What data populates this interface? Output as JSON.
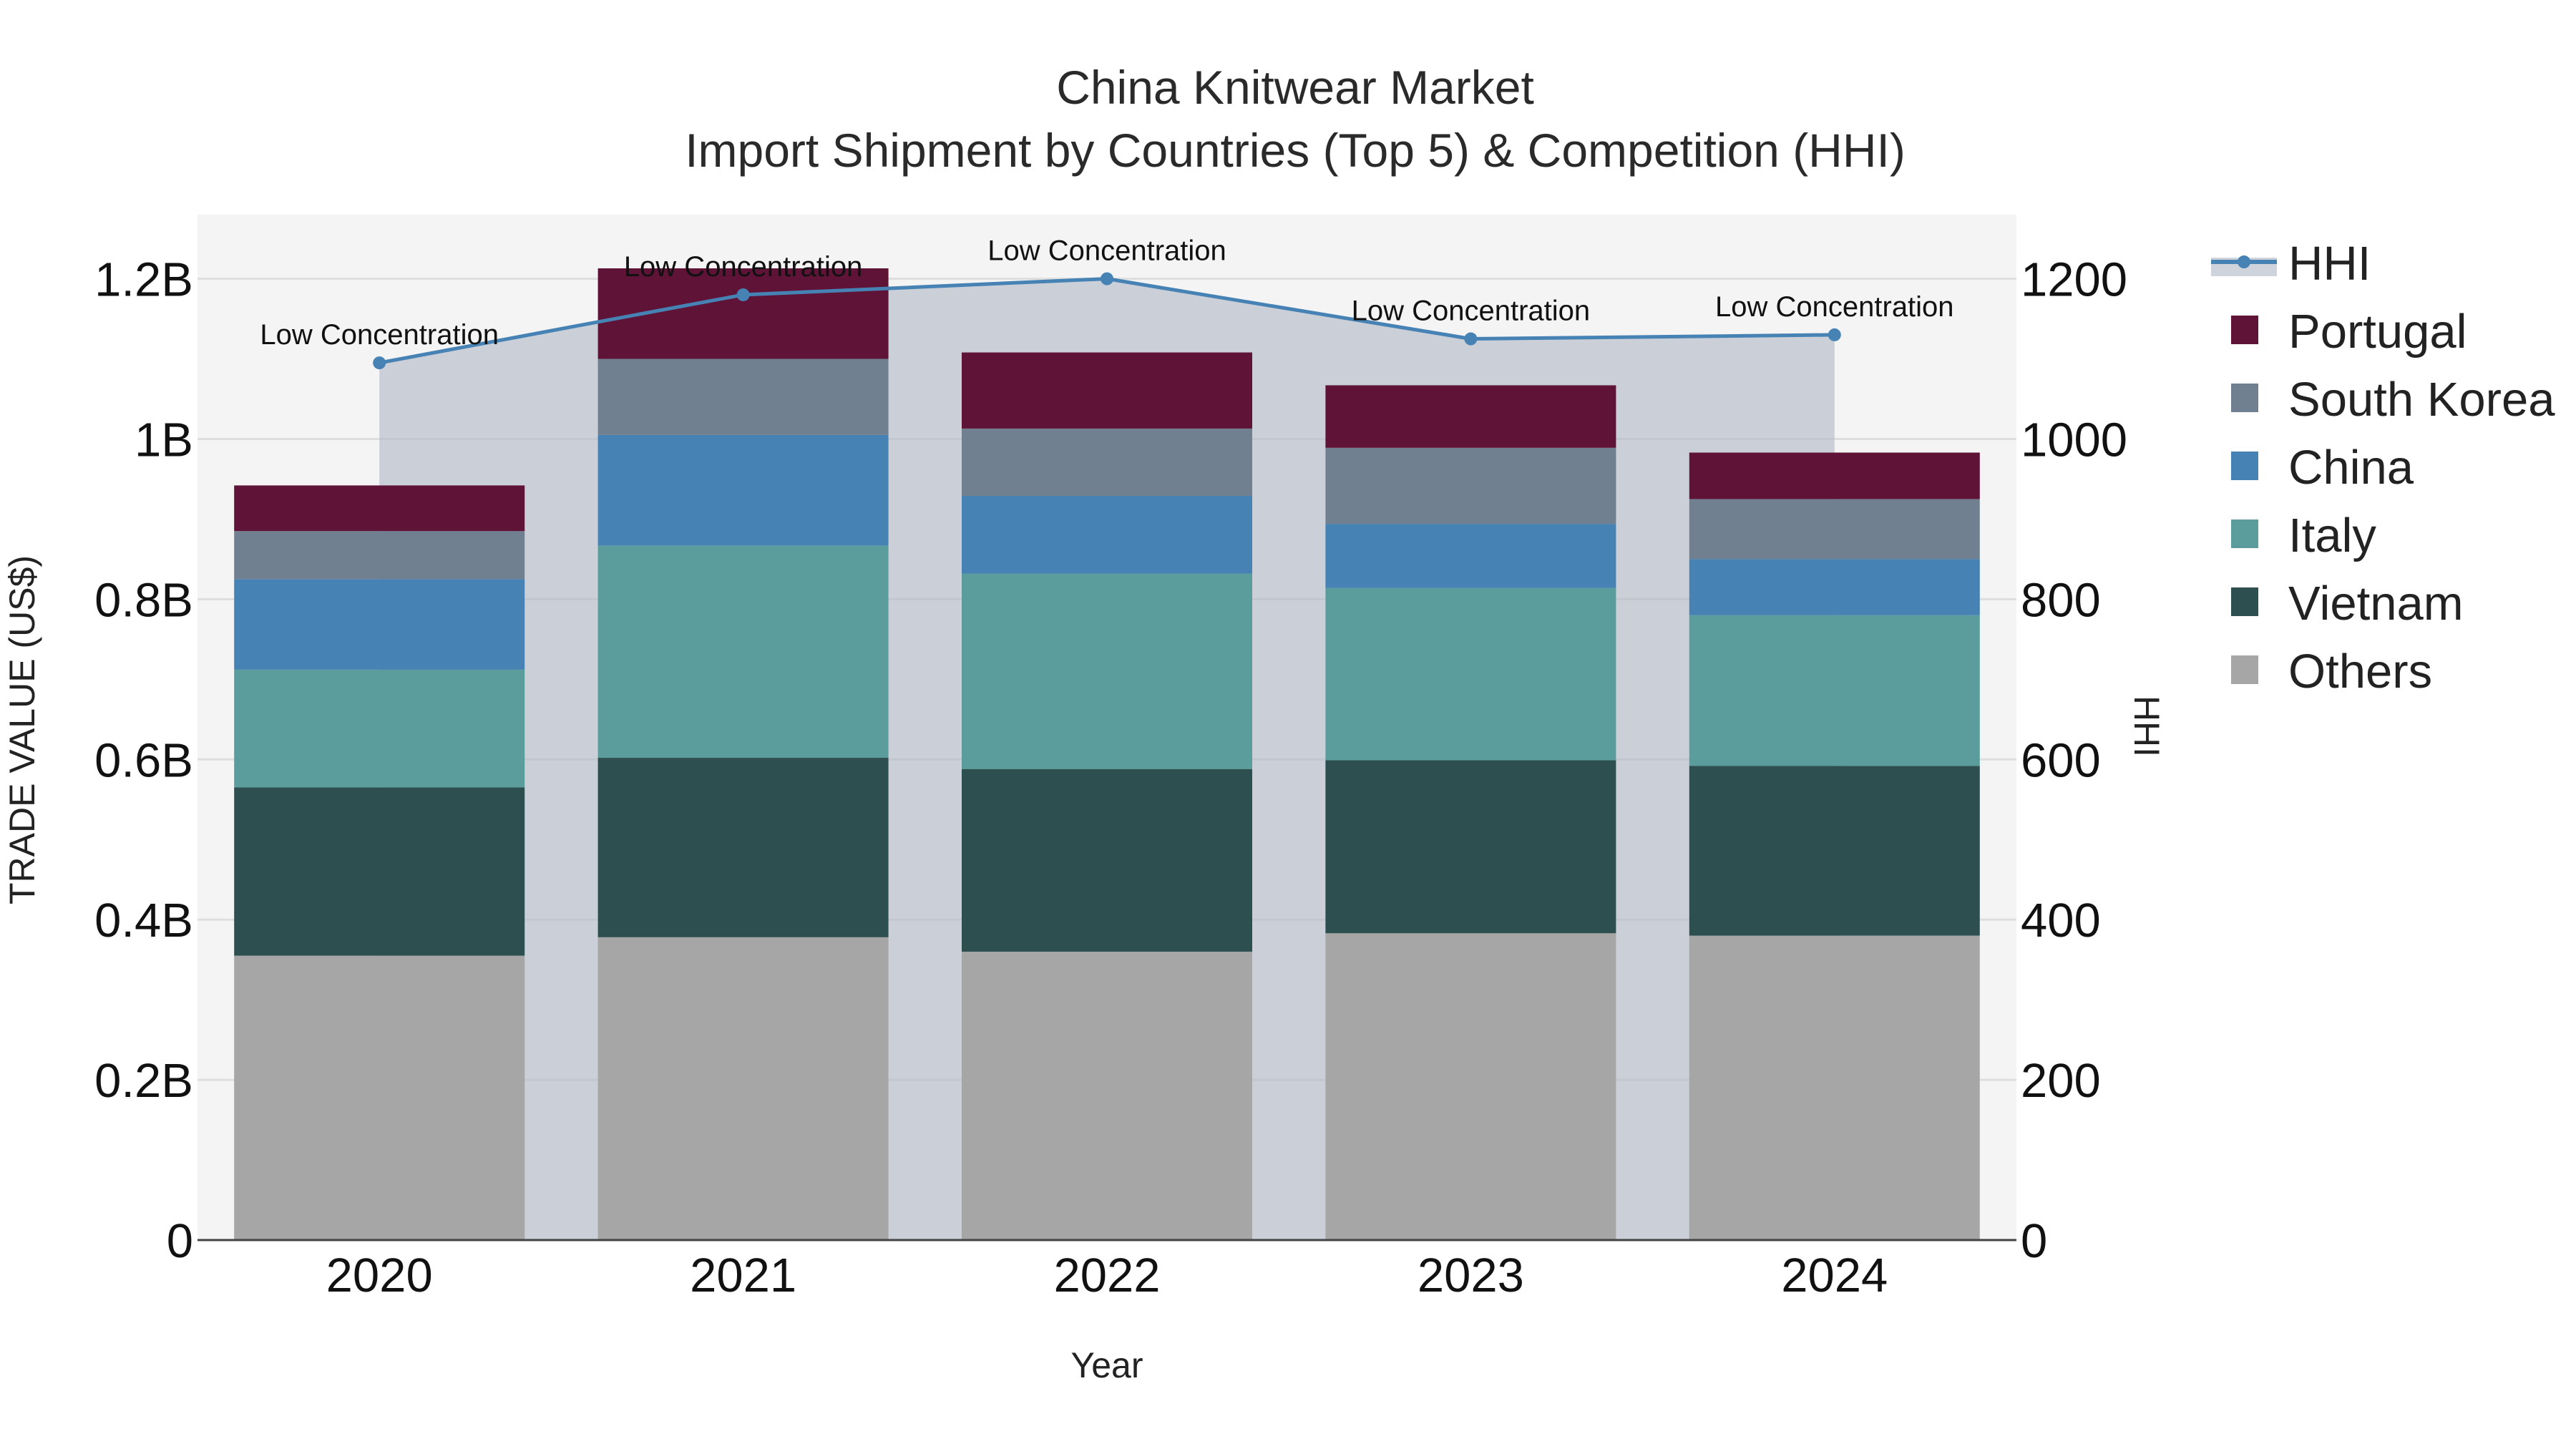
{
  "chart_data": {
    "type": "bar",
    "title": "China Knitwear Market",
    "subtitle": "Import Shipment by Countries (Top 5) & Competition (HHI)",
    "xlabel": "Year",
    "ylabel": "TRADE VALUE (US$)",
    "y2label": "HHI",
    "categories": [
      "2020",
      "2021",
      "2022",
      "2023",
      "2024"
    ],
    "ylim": [
      0,
      1.28
    ],
    "y2lim": [
      0,
      1280
    ],
    "y_ticks": [
      0,
      0.2,
      0.4,
      0.6,
      0.8,
      1.0,
      1.2
    ],
    "y_tick_labels": [
      "0",
      "0.2B",
      "0.4B",
      "0.6B",
      "0.8B",
      "1B",
      "1.2B"
    ],
    "y2_ticks": [
      0,
      200,
      400,
      600,
      800,
      1000,
      1200
    ],
    "y2_tick_labels": [
      "0",
      "200",
      "400",
      "600",
      "800",
      "1000",
      "1200"
    ],
    "value_unit": "billion US$",
    "grid": true,
    "legend_position": "right",
    "series": [
      {
        "name": "Others",
        "color": "#a6a6a6",
        "values": [
          0.355,
          0.378,
          0.36,
          0.383,
          0.38
        ]
      },
      {
        "name": "Vietnam",
        "color": "#2e4f4f",
        "values": [
          0.21,
          0.224,
          0.228,
          0.216,
          0.212
        ]
      },
      {
        "name": "Italy",
        "color": "#5b9c9c",
        "values": [
          0.147,
          0.265,
          0.244,
          0.215,
          0.188
        ]
      },
      {
        "name": "China",
        "color": "#4682b4",
        "values": [
          0.113,
          0.138,
          0.097,
          0.08,
          0.07
        ]
      },
      {
        "name": "South Korea",
        "color": "#708090",
        "values": [
          0.06,
          0.095,
          0.084,
          0.095,
          0.075
        ]
      },
      {
        "name": "Portugal",
        "color": "#5f1336",
        "values": [
          0.057,
          0.113,
          0.095,
          0.078,
          0.058
        ]
      }
    ],
    "hhi": {
      "name": "HHI",
      "color": "#4682b4",
      "values": [
        1095,
        1180,
        1200,
        1125,
        1130
      ],
      "annotations": [
        "Low Concentration",
        "Low Concentration",
        "Low Concentration",
        "Low Concentration",
        "Low Concentration"
      ]
    },
    "legend": [
      "HHI",
      "Portugal",
      "South Korea",
      "China",
      "Italy",
      "Vietnam",
      "Others"
    ]
  }
}
